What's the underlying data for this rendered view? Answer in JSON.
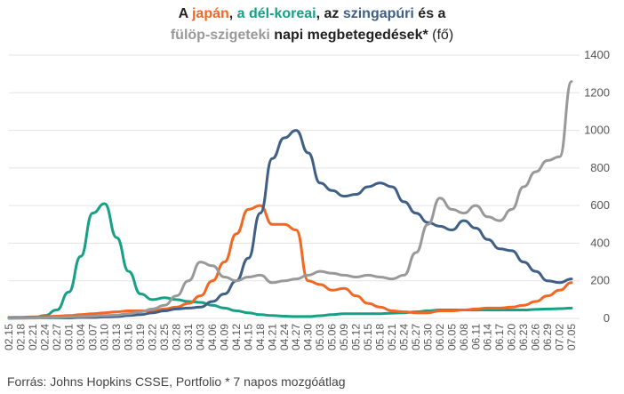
{
  "title": {
    "line1": [
      {
        "text": "A ",
        "color": "#222222"
      },
      {
        "text": "japán",
        "color": "#F26722"
      },
      {
        "text": ", ",
        "color": "#222222"
      },
      {
        "text": "a dél-koreai",
        "color": "#16A085"
      },
      {
        "text": ", az ",
        "color": "#222222"
      },
      {
        "text": "szingapúri",
        "color": "#3F5F86"
      },
      {
        "text": " és a",
        "color": "#222222"
      }
    ],
    "line2": [
      {
        "text": "fülöp-szigeteki",
        "color": "#999999"
      },
      {
        "text": " napi megbetegedések* ",
        "color": "#222222"
      },
      {
        "text": "(fő)",
        "color": "#222222",
        "light": true
      }
    ]
  },
  "source": "Forrás: Johns Hopkins CSSE, Portfolio   * 7 napos mozgóátlag",
  "chart_data": {
    "type": "line",
    "ylim": [
      0,
      1400
    ],
    "yticks": [
      0,
      200,
      400,
      600,
      800,
      1000,
      1200,
      1400
    ],
    "grid": true,
    "x_tick_labels": [
      "02.15",
      "02.18",
      "02.21",
      "02.24",
      "02.27",
      "03.01",
      "03.04",
      "03.07",
      "03.10",
      "03.13",
      "03.16",
      "03.19",
      "03.22",
      "03.25",
      "03.28",
      "03.31",
      "04.03",
      "04.06",
      "04.09",
      "04.12",
      "04.15",
      "04.18",
      "04.21",
      "04.24",
      "04.27",
      "04.30",
      "05.03",
      "05.06",
      "05.09",
      "05.12",
      "05.15",
      "05.18",
      "05.21",
      "05.24",
      "05.27",
      "05.30",
      "06.02",
      "06.05",
      "06.08",
      "06.11",
      "06.14",
      "06.17",
      "06.20",
      "06.23",
      "06.26",
      "06.29",
      "07.02",
      "07.05"
    ],
    "series": [
      {
        "color": "#16A085",
        "x": [
          0,
          3,
          6,
          9,
          12,
          15,
          18,
          21,
          24,
          27,
          30,
          33,
          36,
          39,
          42,
          45,
          48,
          51,
          54,
          57,
          60,
          63,
          66,
          69,
          72,
          75,
          78,
          81,
          84,
          87,
          90,
          93,
          96,
          99,
          102,
          105,
          108,
          111,
          114,
          117,
          120,
          123,
          126,
          129,
          132,
          135,
          138,
          141
        ],
        "values": [
          3,
          3,
          4,
          15,
          45,
          140,
          330,
          560,
          610,
          430,
          250,
          130,
          100,
          110,
          100,
          90,
          85,
          70,
          55,
          40,
          30,
          20,
          15,
          12,
          10,
          10,
          14,
          20,
          25,
          25,
          25,
          25,
          28,
          30,
          35,
          40,
          45,
          45,
          45,
          45,
          45,
          45,
          45,
          45,
          48,
          50,
          52,
          55
        ]
      },
      {
        "color": "#F26722",
        "x": [
          0,
          3,
          6,
          9,
          12,
          15,
          18,
          21,
          24,
          27,
          30,
          33,
          36,
          39,
          42,
          45,
          48,
          51,
          54,
          57,
          60,
          63,
          66,
          69,
          72,
          75,
          78,
          81,
          84,
          87,
          90,
          93,
          96,
          99,
          102,
          105,
          108,
          111,
          114,
          117,
          120,
          123,
          126,
          129,
          132,
          135,
          138,
          141
        ],
        "values": [
          5,
          6,
          8,
          10,
          12,
          15,
          20,
          25,
          30,
          35,
          40,
          40,
          40,
          50,
          60,
          80,
          120,
          200,
          300,
          450,
          580,
          600,
          500,
          500,
          470,
          200,
          180,
          150,
          160,
          120,
          80,
          60,
          40,
          35,
          30,
          30,
          40,
          40,
          45,
          50,
          55,
          55,
          60,
          70,
          90,
          120,
          150,
          190
        ]
      },
      {
        "color": "#3F5F86",
        "x": [
          0,
          3,
          6,
          9,
          12,
          15,
          18,
          21,
          24,
          27,
          30,
          33,
          36,
          39,
          42,
          45,
          48,
          51,
          54,
          57,
          60,
          63,
          66,
          69,
          72,
          75,
          78,
          81,
          84,
          87,
          90,
          93,
          96,
          99,
          102,
          105,
          108,
          111,
          114,
          117,
          120,
          123,
          126,
          129,
          132,
          135,
          138,
          141
        ],
        "values": [
          2,
          2,
          3,
          3,
          3,
          3,
          5,
          5,
          8,
          10,
          15,
          20,
          30,
          40,
          50,
          55,
          60,
          90,
          130,
          200,
          320,
          560,
          850,
          960,
          1000,
          880,
          720,
          680,
          650,
          660,
          700,
          720,
          700,
          620,
          560,
          510,
          490,
          470,
          520,
          480,
          420,
          370,
          360,
          300,
          250,
          200,
          190,
          210
        ]
      },
      {
        "color": "#999999",
        "x": [
          0,
          3,
          6,
          9,
          12,
          15,
          18,
          21,
          24,
          27,
          30,
          33,
          36,
          39,
          42,
          45,
          48,
          51,
          54,
          57,
          60,
          63,
          66,
          69,
          72,
          75,
          78,
          81,
          84,
          87,
          90,
          93,
          96,
          99,
          102,
          105,
          108,
          111,
          114,
          117,
          120,
          123,
          126,
          129,
          132,
          135,
          138,
          141
        ],
        "values": [
          0,
          1,
          2,
          3,
          5,
          8,
          10,
          12,
          15,
          18,
          25,
          35,
          50,
          70,
          120,
          200,
          300,
          280,
          220,
          200,
          220,
          230,
          190,
          200,
          210,
          230,
          250,
          240,
          230,
          220,
          230,
          220,
          210,
          230,
          350,
          500,
          640,
          580,
          560,
          600,
          540,
          520,
          580,
          700,
          780,
          840,
          860,
          1260
        ]
      }
    ]
  }
}
